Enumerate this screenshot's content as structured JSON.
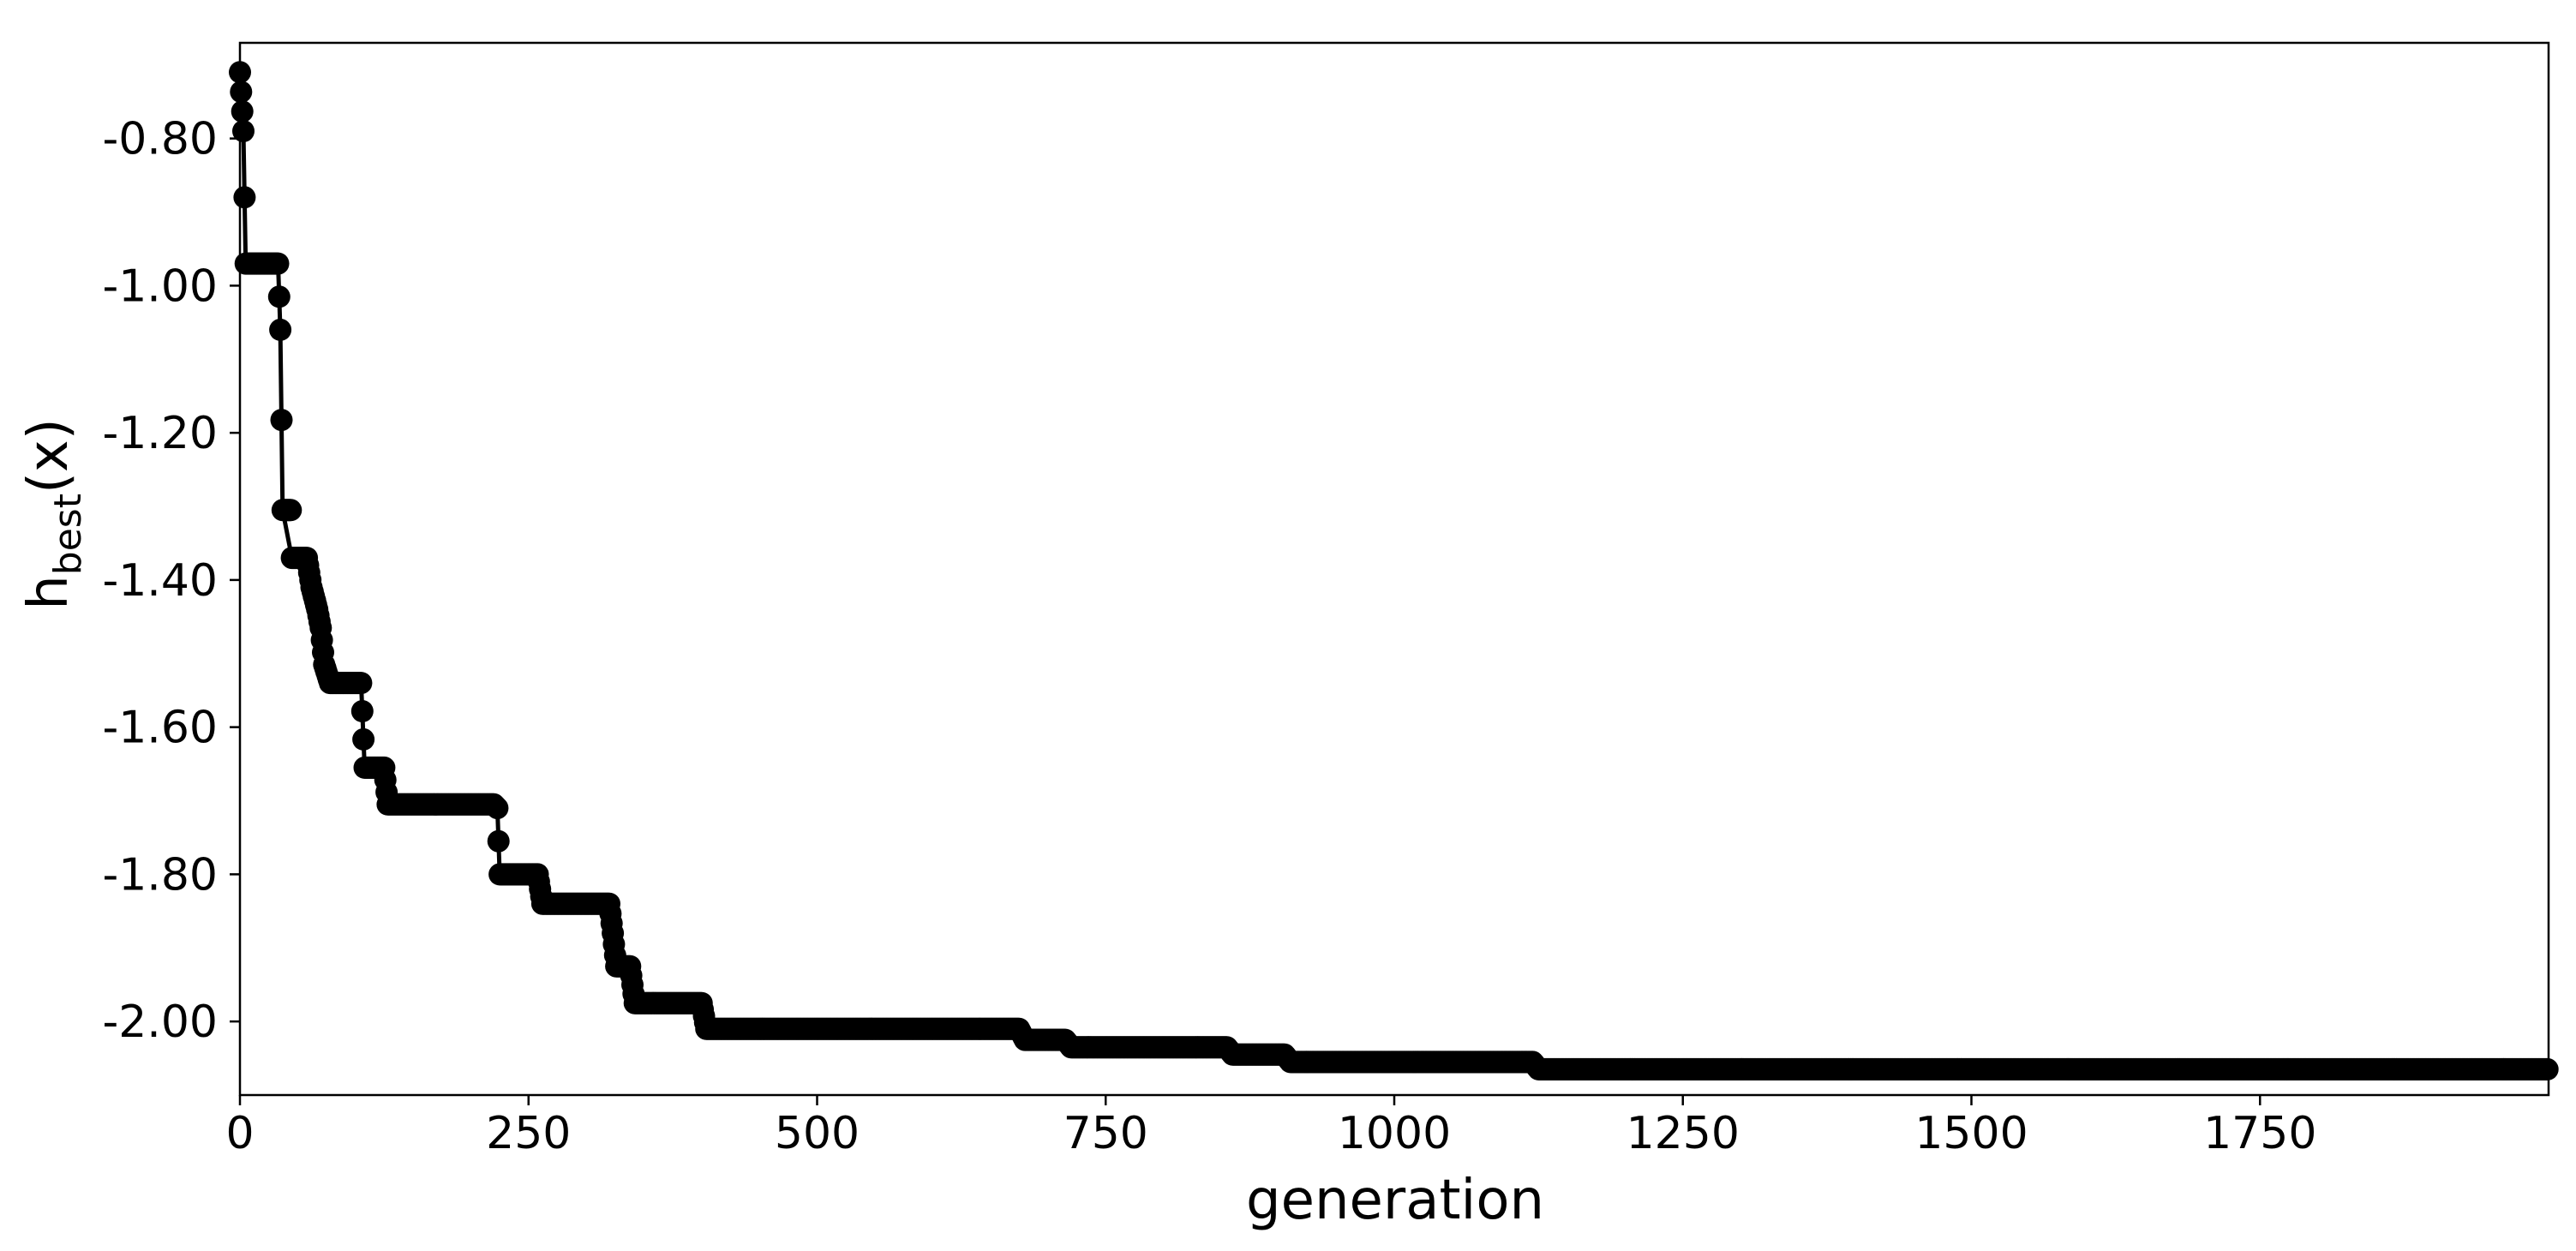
{
  "chart_data": {
    "type": "line",
    "title": "",
    "xlabel": "generation",
    "ylabel": {
      "base": "h",
      "subscript": "best",
      "suffix": "(x)"
    },
    "xlim": [
      0,
      2000
    ],
    "ylim": [
      -2.1,
      -0.67
    ],
    "xticks": [
      0,
      250,
      500,
      750,
      1000,
      1250,
      1500,
      1750
    ],
    "xtick_labels": [
      "0",
      "250",
      "500",
      "750",
      "1000",
      "1250",
      "1500",
      "1750"
    ],
    "yticks": [
      -0.8,
      -1.0,
      -1.2,
      -1.4,
      -1.6,
      -1.8,
      -2.0
    ],
    "ytick_labels": [
      "-0.80",
      "-1.00",
      "-1.20",
      "-1.40",
      "-1.60",
      "-1.80",
      "-2.00"
    ],
    "grid": false,
    "legend": "none",
    "marker": "circle",
    "color": "#000000",
    "series": [
      {
        "x": [
          0,
          3,
          5,
          33,
          35,
          37,
          45,
          58,
          62,
          67,
          70,
          73,
          78,
          105,
          108,
          125,
          128,
          220,
          223,
          225,
          258,
          262,
          320,
          323,
          326,
          338,
          342,
          400,
          404,
          408,
          675,
          680,
          715,
          720,
          855,
          860,
          905,
          910,
          1120,
          1125,
          1999
        ],
        "y": [
          -0.71,
          -0.79,
          -0.97,
          -0.97,
          -1.06,
          -1.305,
          -1.37,
          -1.37,
          -1.41,
          -1.44,
          -1.465,
          -1.515,
          -1.54,
          -1.54,
          -1.655,
          -1.655,
          -1.705,
          -1.705,
          -1.71,
          -1.8,
          -1.8,
          -1.84,
          -1.84,
          -1.88,
          -1.925,
          -1.925,
          -1.975,
          -1.975,
          -2.01,
          -2.01,
          -2.01,
          -2.025,
          -2.025,
          -2.035,
          -2.035,
          -2.045,
          -2.045,
          -2.055,
          -2.055,
          -2.065,
          -2.065
        ]
      }
    ]
  }
}
